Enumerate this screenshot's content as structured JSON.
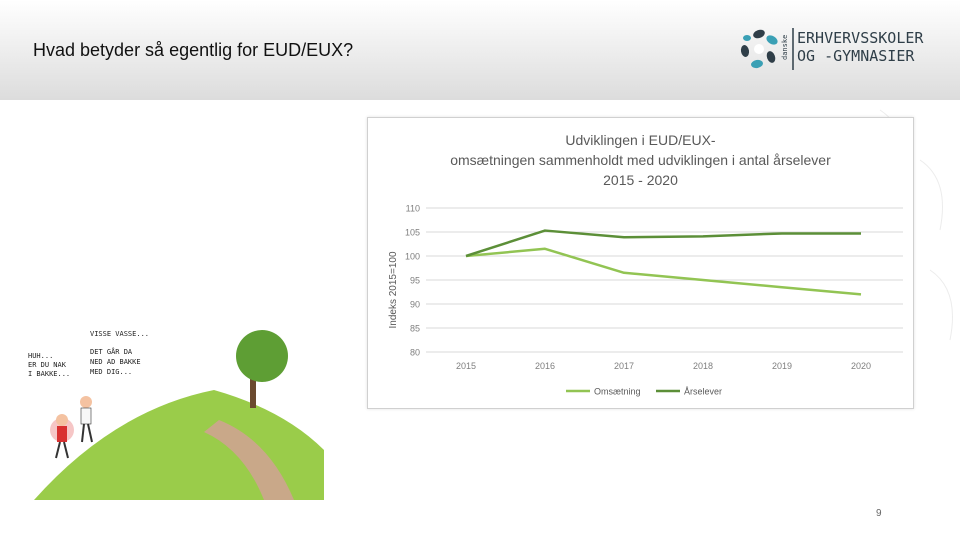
{
  "slide": {
    "title": "Hvad betyder så egentlig for EUD/EUX?",
    "page_number": "9"
  },
  "logo": {
    "small_word": "danske",
    "line1": "ERHVERVSSKOLER",
    "line2": "OG -GYMNASIER"
  },
  "cartoon": {
    "speech_left": [
      "HUH...",
      "ER DU NAK",
      "I BAKKE..."
    ],
    "speech_right": [
      "VISSE VASSE...",
      "DET GÅR DA",
      "NED AD BAKKE",
      "MED DIG..."
    ]
  },
  "chart_data": {
    "type": "line",
    "title_lines": [
      "Udviklingen i EUD/EUX-",
      "omsætningen sammenholdt med udviklingen i antal årselever",
      "2015 - 2020"
    ],
    "ylabel": "Indeks 2015=100",
    "xlabel": "",
    "x": [
      "2015",
      "2016",
      "2017",
      "2018",
      "2019",
      "2020"
    ],
    "ylim": [
      80,
      110
    ],
    "yticks": [
      80,
      85,
      90,
      95,
      100,
      105,
      110
    ],
    "grid": true,
    "legend": "bottom",
    "series": [
      {
        "name": "Omsætning",
        "color": "#92c453",
        "values": [
          100,
          101.5,
          96.5,
          95,
          93.5,
          92
        ]
      },
      {
        "name": "Årselever",
        "color": "#5c8f38",
        "values": [
          100,
          105.3,
          103.9,
          104.1,
          104.7,
          104.7
        ]
      }
    ]
  }
}
